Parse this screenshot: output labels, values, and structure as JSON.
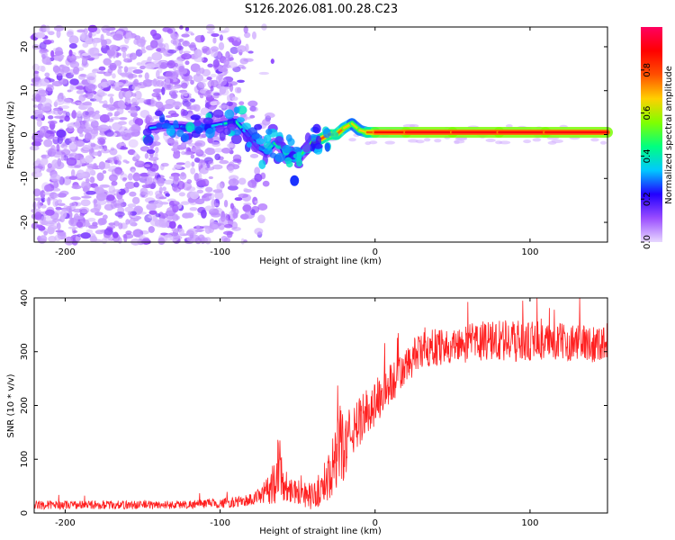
{
  "title": "S126.2026.081.00.28.C23",
  "chart_data": [
    {
      "type": "heatmap",
      "name": "spectrogram",
      "xlabel": "Height of straight line (km)",
      "ylabel": "Frequency (Hz)",
      "xlim": [
        -220,
        150
      ],
      "ylim": [
        -24.5,
        24.5
      ],
      "x_ticks": [
        -200,
        -100,
        0,
        100
      ],
      "y_ticks": [
        -20,
        -10,
        0,
        10,
        20
      ],
      "colorbar": {
        "label": "Normalized spectral amplitude",
        "range": [
          0,
          1
        ],
        "ticks": [
          0.0,
          0.2,
          0.4,
          0.6,
          0.8
        ],
        "colormap": [
          "#e8d8ff",
          "#9a4dff",
          "#2200ff",
          "#00c8ff",
          "#00ff80",
          "#80ff00",
          "#ffd000",
          "#ff5000",
          "#ff0000",
          "#ff0060"
        ]
      },
      "signal_track": {
        "description": "frequency of the strongest component vs height",
        "x": [
          -145,
          -135,
          -125,
          -115,
          -105,
          -97,
          -90,
          -85,
          -80,
          -75,
          -70,
          -65,
          -60,
          -57,
          -53,
          -50,
          -45,
          -40,
          -35,
          -30,
          -25,
          -20,
          -15,
          -10,
          -5,
          0,
          20,
          50,
          80,
          110,
          150
        ],
        "y": [
          1.5,
          2.0,
          1.8,
          1.5,
          2.0,
          2.5,
          3.0,
          1.0,
          -1.0,
          -3.0,
          -4.0,
          -2.0,
          -3.0,
          -5.5,
          -4.5,
          -5.5,
          -3.5,
          -1.5,
          -1.0,
          0.0,
          0.0,
          1.5,
          2.5,
          1.0,
          0.5,
          0.5,
          0.5,
          0.5,
          0.5,
          0.5,
          0.5
        ],
        "amplitude": [
          0.35,
          0.3,
          0.3,
          0.35,
          0.3,
          0.4,
          0.45,
          0.35,
          0.3,
          0.3,
          0.35,
          0.45,
          0.45,
          0.2,
          0.3,
          0.5,
          0.45,
          0.6,
          0.75,
          0.8,
          0.8,
          0.7,
          0.65,
          0.6,
          0.7,
          0.85,
          0.9,
          0.9,
          0.9,
          0.9,
          0.9
        ]
      }
    },
    {
      "type": "line",
      "name": "snr",
      "xlabel": "Height of straight line (km)",
      "ylabel": "SNR (10 * v/v)",
      "xlim": [
        -220,
        150
      ],
      "ylim": [
        0,
        400
      ],
      "x_ticks": [
        -200,
        -100,
        0,
        100
      ],
      "y_ticks": [
        0,
        100,
        200,
        300,
        400
      ],
      "color": "#ff2020",
      "series": [
        {
          "name": "SNR",
          "x": [
            -220,
            -200,
            -180,
            -160,
            -140,
            -120,
            -100,
            -90,
            -80,
            -75,
            -70,
            -65,
            -62,
            -60,
            -58,
            -55,
            -50,
            -45,
            -40,
            -35,
            -30,
            -25,
            -22,
            -20,
            -15,
            -10,
            -5,
            0,
            10,
            20,
            25,
            30,
            40,
            50,
            60,
            70,
            80,
            90,
            100,
            110,
            120,
            130,
            140,
            150
          ],
          "y": [
            15,
            15,
            15,
            15,
            15,
            16,
            18,
            20,
            25,
            30,
            40,
            60,
            95,
            60,
            50,
            45,
            40,
            35,
            30,
            45,
            70,
            100,
            130,
            120,
            150,
            170,
            190,
            205,
            240,
            270,
            290,
            300,
            310,
            310,
            315,
            320,
            320,
            320,
            318,
            318,
            318,
            318,
            315,
            318
          ],
          "noise": [
            8,
            8,
            8,
            8,
            8,
            8,
            9,
            10,
            12,
            15,
            25,
            45,
            60,
            35,
            30,
            25,
            25,
            25,
            25,
            35,
            45,
            60,
            80,
            60,
            50,
            45,
            45,
            45,
            40,
            35,
            35,
            35,
            35,
            35,
            35,
            40,
            40,
            40,
            38,
            35,
            35,
            35,
            35,
            35
          ]
        }
      ]
    }
  ]
}
